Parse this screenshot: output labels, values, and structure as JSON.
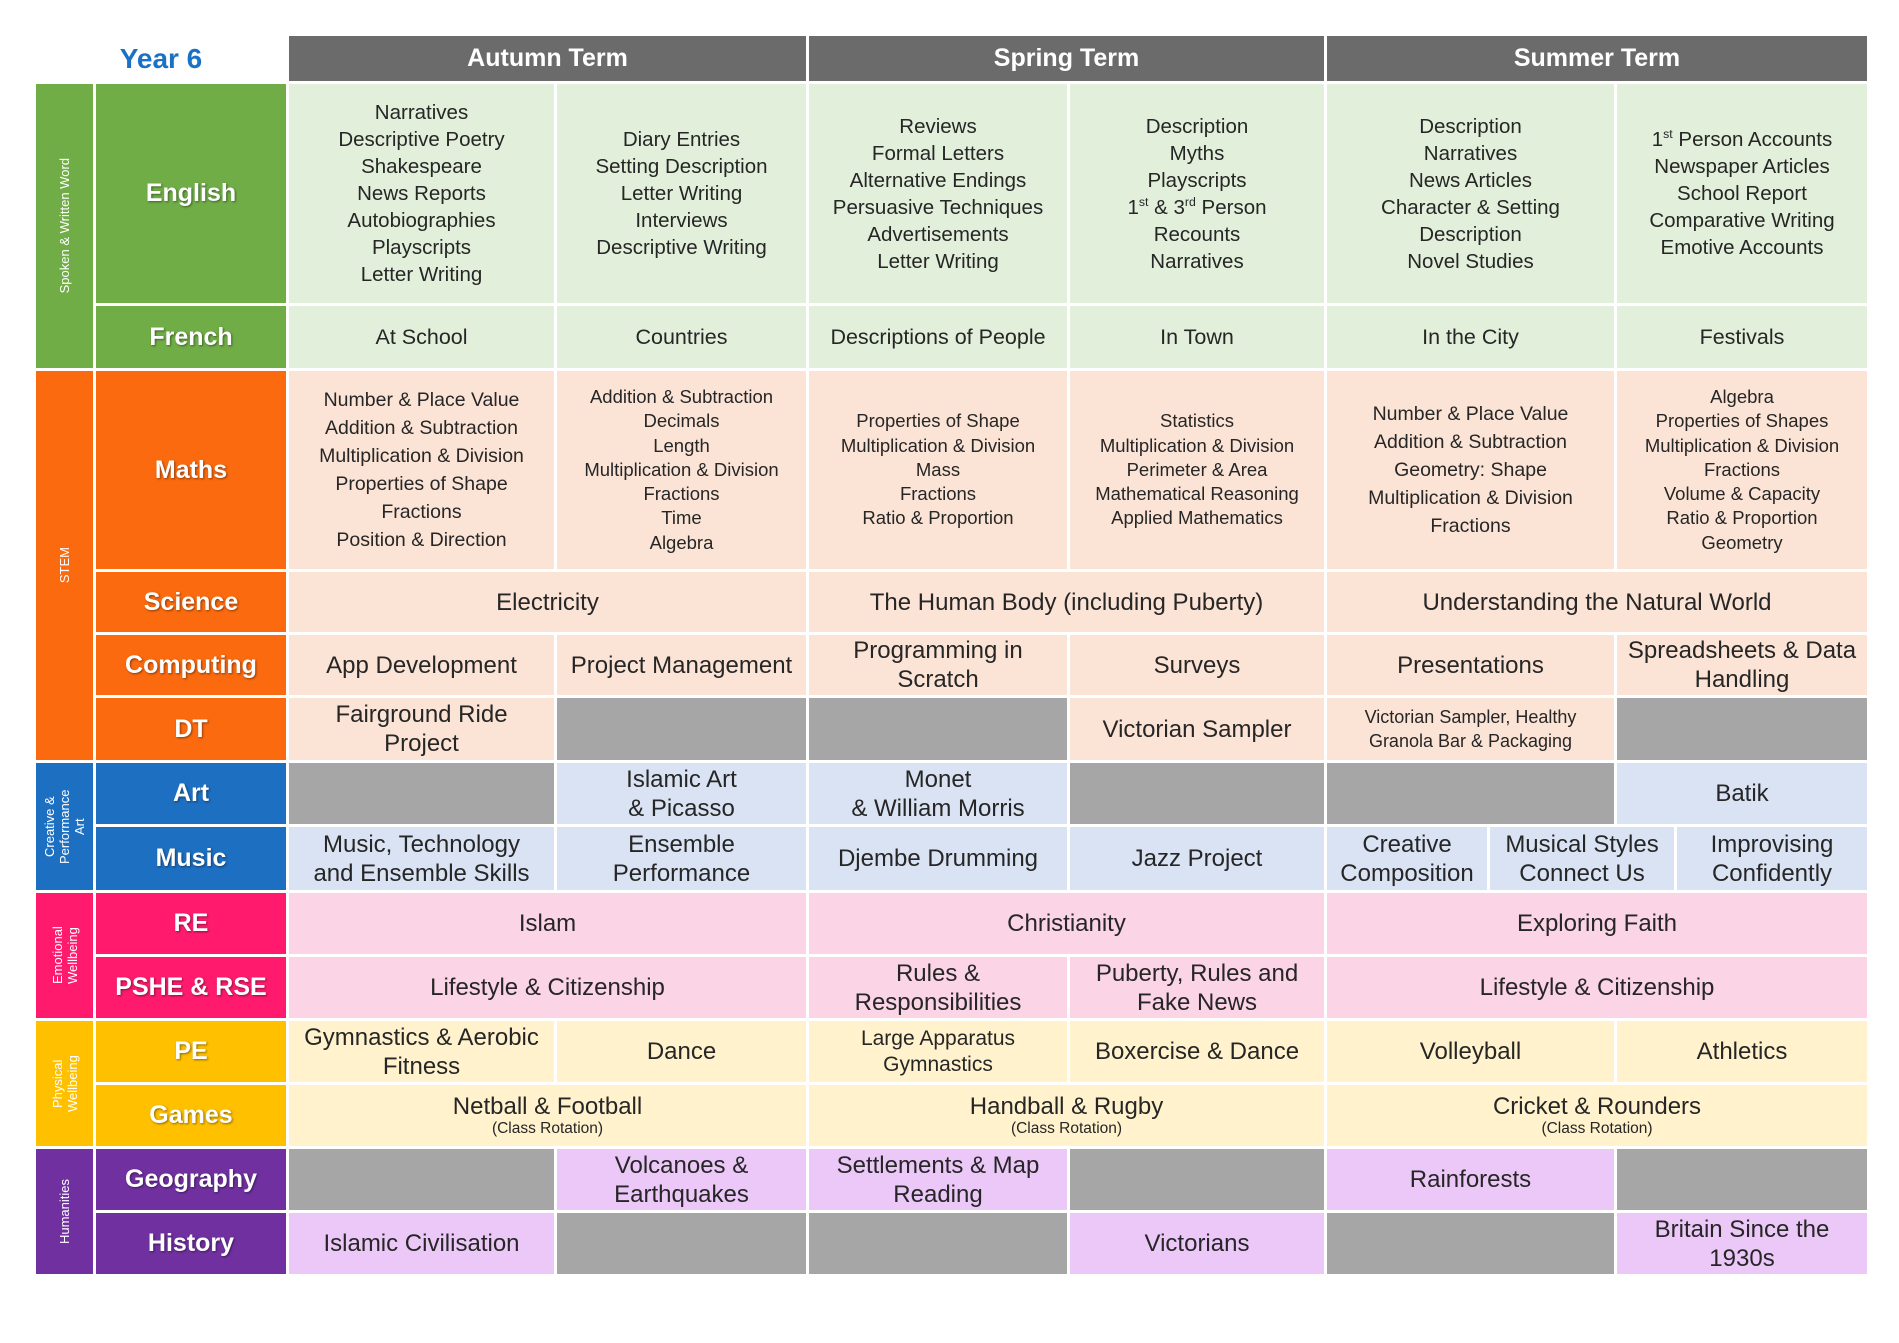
{
  "page_title": "Year 6",
  "terms": {
    "autumn": "Autumn Term",
    "spring": "Spring Term",
    "summer": "Summer Term"
  },
  "colors": {
    "term_header": "#6b6b6b",
    "year_title": "#1b72c4",
    "empty_cell": "#a6a6a6",
    "green": "#70ad47",
    "green_light": "#e2efda",
    "orange": "#fb6a0e",
    "orange_light": "#fbe4d6",
    "blue": "#1d6fc1",
    "blue_light": "#dae3f3",
    "pink": "#ff1a6e",
    "pink_light": "#fbd4e5",
    "yellow": "#ffc000",
    "yellow_light": "#fff2cc",
    "purple": "#7030a0",
    "purple_light": "#ebc8f7"
  },
  "categories": {
    "spoken_written": "Spoken & Written Word",
    "stem": "STEM",
    "creative": "Creative & Performance Art",
    "emotional": "Emotional Wellbeing",
    "physical": "Physical Wellbeing",
    "humanities": "Humanities"
  },
  "english": {
    "label": "English",
    "autumn_1": [
      "Narratives",
      "Descriptive Poetry",
      "Shakespeare",
      "News Reports",
      "Autobiographies",
      "Playscripts",
      "Letter Writing"
    ],
    "autumn_2": [
      "Diary Entries",
      "Setting Description",
      "Letter Writing",
      "Interviews",
      "Descriptive Writing"
    ],
    "spring_1": [
      "Reviews",
      "Formal Letters",
      "Alternative Endings",
      "Persuasive Techniques",
      "Advertisements",
      "Letter Writing"
    ],
    "spring_2": [
      "Description",
      "Myths",
      "Playscripts",
      [
        "1",
        "st",
        " & 3",
        "rd",
        " Person"
      ],
      "Recounts",
      "Narratives"
    ],
    "summer_1": [
      "Description",
      "Narratives",
      "News Articles",
      "Character & Setting",
      "Description",
      "Novel Studies"
    ],
    "summer_2": [
      [
        "1",
        "st",
        " Person Accounts"
      ],
      "Newspaper Articles",
      "School Report",
      "Comparative Writing",
      "Emotive Accounts"
    ]
  },
  "french": {
    "label": "French",
    "autumn_1": "At School",
    "autumn_2": "Countries",
    "spring_1": "Descriptions of People",
    "spring_2": "In Town",
    "summer_1": "In the City",
    "summer_2": "Festivals"
  },
  "maths": {
    "label": "Maths",
    "autumn_1": [
      "Number & Place Value",
      "Addition & Subtraction",
      "Multiplication & Division",
      "Properties of Shape",
      "Fractions",
      "Position & Direction"
    ],
    "autumn_2": [
      "Addition & Subtraction",
      "Decimals",
      "Length",
      "Multiplication & Division",
      "Fractions",
      "Time",
      "Algebra"
    ],
    "spring_1": [
      "Properties of Shape",
      "Multiplication & Division",
      "Mass",
      "Fractions",
      "Ratio & Proportion"
    ],
    "spring_2": [
      "Statistics",
      "Multiplication & Division",
      "Perimeter & Area",
      "Mathematical Reasoning",
      "Applied Mathematics"
    ],
    "summer_1": [
      "Number & Place Value",
      "Addition & Subtraction",
      "Geometry: Shape",
      "Multiplication & Division",
      "Fractions"
    ],
    "summer_2": [
      "Algebra",
      "Properties of Shapes",
      "Multiplication & Division",
      "Fractions",
      "Volume & Capacity",
      "Ratio & Proportion",
      "Geometry"
    ]
  },
  "science": {
    "label": "Science",
    "autumn": "Electricity",
    "spring": "The Human Body (including Puberty)",
    "summer": "Understanding the Natural World"
  },
  "computing": {
    "label": "Computing",
    "autumn_1": "App Development",
    "autumn_2": "Project Management",
    "spring_1": [
      "Programming in",
      "Scratch"
    ],
    "spring_2": "Surveys",
    "summer_1": "Presentations",
    "summer_2": [
      "Spreadsheets & Data",
      "Handling"
    ]
  },
  "dt": {
    "label": "DT",
    "autumn_1": [
      "Fairground Ride",
      "Project"
    ],
    "spring_2": "Victorian Sampler",
    "summer_1": [
      "Victorian Sampler, Healthy",
      "Granola Bar & Packaging"
    ]
  },
  "art": {
    "label": "Art",
    "autumn_2": [
      "Islamic Art",
      "& Picasso"
    ],
    "spring_1": [
      "Monet",
      "& William Morris"
    ],
    "summer_2": "Batik"
  },
  "music": {
    "label": "Music",
    "autumn_1": [
      "Music, Technology",
      "and Ensemble Skills"
    ],
    "autumn_2": [
      "Ensemble",
      "Performance"
    ],
    "spring_1": "Djembe Drumming",
    "spring_2": "Jazz Project",
    "summer_a": [
      "Creative",
      "Composition"
    ],
    "summer_b": [
      "Musical Styles",
      "Connect Us"
    ],
    "summer_c": [
      "Improvising",
      "Confidently"
    ]
  },
  "re": {
    "label": "RE",
    "autumn": "Islam",
    "spring": "Christianity",
    "summer": "Exploring Faith"
  },
  "pshe": {
    "label": "PSHE & RSE",
    "autumn": "Lifestyle & Citizenship",
    "spring_1": [
      "Rules &",
      "Responsibilities"
    ],
    "spring_2": [
      "Puberty, Rules and",
      "Fake News"
    ],
    "summer": "Lifestyle & Citizenship"
  },
  "pe": {
    "label": "PE",
    "autumn_1": [
      "Gymnastics & Aerobic",
      "Fitness"
    ],
    "autumn_2": "Dance",
    "spring_1": [
      "Large Apparatus",
      "Gymnastics"
    ],
    "spring_2": "Boxercise & Dance",
    "summer_1": "Volleyball",
    "summer_2": "Athletics"
  },
  "games": {
    "label": "Games",
    "autumn": {
      "activity": "Netball & Football",
      "note": "(Class Rotation)"
    },
    "spring": {
      "activity": "Handball & Rugby",
      "note": "(Class Rotation)"
    },
    "summer": {
      "activity": "Cricket & Rounders",
      "note": "(Class Rotation)"
    }
  },
  "geography": {
    "label": "Geography",
    "autumn_2": [
      "Volcanoes &",
      "Earthquakes"
    ],
    "spring_1": [
      "Settlements & Map",
      "Reading"
    ],
    "summer_1": "Rainforests"
  },
  "history": {
    "label": "History",
    "autumn_1": "Islamic Civilisation",
    "spring_2": "Victorians",
    "summer_2": [
      "Britain Since the",
      "1930s"
    ]
  }
}
